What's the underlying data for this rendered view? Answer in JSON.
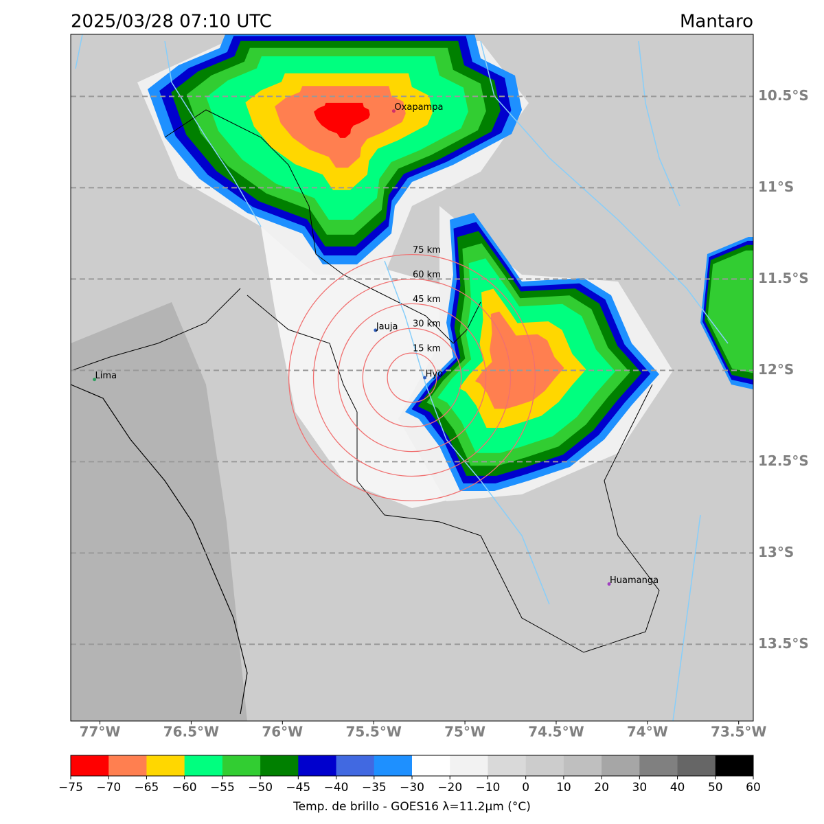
{
  "header": {
    "title": "2025/03/28 07:10 UTC",
    "region": "Mantaro"
  },
  "map": {
    "xlim": [
      -77.16,
      -73.42
    ],
    "ylim": [
      -13.92,
      -10.16
    ],
    "xticks": [
      {
        "value": -77,
        "label": "77°W"
      },
      {
        "value": -76.5,
        "label": "76.5°W"
      },
      {
        "value": -76,
        "label": "76°W"
      },
      {
        "value": -75.5,
        "label": "75.5°W"
      },
      {
        "value": -75,
        "label": "75°W"
      },
      {
        "value": -74.5,
        "label": "74.5°W"
      },
      {
        "value": -74,
        "label": "74°W"
      },
      {
        "value": -73.5,
        "label": "73.5°W"
      }
    ],
    "yticks": [
      {
        "value": -10.5,
        "label": "10.5°S"
      },
      {
        "value": -11,
        "label": "11°S"
      },
      {
        "value": -11.5,
        "label": "11.5°S"
      },
      {
        "value": -12,
        "label": "12°S"
      },
      {
        "value": -12.5,
        "label": "12.5°S"
      },
      {
        "value": -13,
        "label": "13°S"
      },
      {
        "value": -13.5,
        "label": "13.5°S"
      }
    ],
    "cities": [
      {
        "name": "Oxapampa",
        "lon": -75.39,
        "lat": -10.58,
        "color": "#d0306a"
      },
      {
        "name": "Jauja",
        "lon": -75.49,
        "lat": -11.78,
        "color": "#3060c0"
      },
      {
        "name": "Hyo",
        "lon": -75.22,
        "lat": -12.04,
        "color": "#3060c0"
      },
      {
        "name": "Lima",
        "lon": -77.03,
        "lat": -12.05,
        "color": "#30a060"
      },
      {
        "name": "Huamanga",
        "lon": -74.21,
        "lat": -13.17,
        "color": "#a040c0"
      }
    ],
    "radar": {
      "lon": -75.29,
      "lat": -12.04
    },
    "rings": [
      {
        "value": 15,
        "label": "15 km"
      },
      {
        "value": 30,
        "label": "30 km"
      },
      {
        "value": 45,
        "label": "45 km"
      },
      {
        "value": 60,
        "label": "60 km"
      },
      {
        "value": 75,
        "label": "75 km"
      }
    ]
  },
  "colorbar": {
    "label": "Temp. de brillo - GOES16 λ=11.2µm (°C)",
    "ticks": [
      {
        "value": -75,
        "label": "−75"
      },
      {
        "value": -70,
        "label": "−70"
      },
      {
        "value": -65,
        "label": "−65"
      },
      {
        "value": -60,
        "label": "−60"
      },
      {
        "value": -55,
        "label": "−55"
      },
      {
        "value": -50,
        "label": "−50"
      },
      {
        "value": -45,
        "label": "−45"
      },
      {
        "value": -40,
        "label": "−40"
      },
      {
        "value": -35,
        "label": "−35"
      },
      {
        "value": -30,
        "label": "−30"
      },
      {
        "value": -20,
        "label": "−20"
      },
      {
        "value": -10,
        "label": "−10"
      },
      0,
      10,
      20,
      30,
      40,
      50,
      60
    ],
    "colors": [
      "#ff0000",
      "#ff7f50",
      "#ffd700",
      "#00ff7f",
      "#32cd32",
      "#008000",
      "#0000cd",
      "#4169e1",
      "#1e90ff",
      "#ffffff",
      "#f2f2f2",
      "#d9d9d9",
      "#cccccc",
      "#bfbfbf",
      "#a6a6a6",
      "#808080",
      "#666666",
      "#000000"
    ]
  }
}
